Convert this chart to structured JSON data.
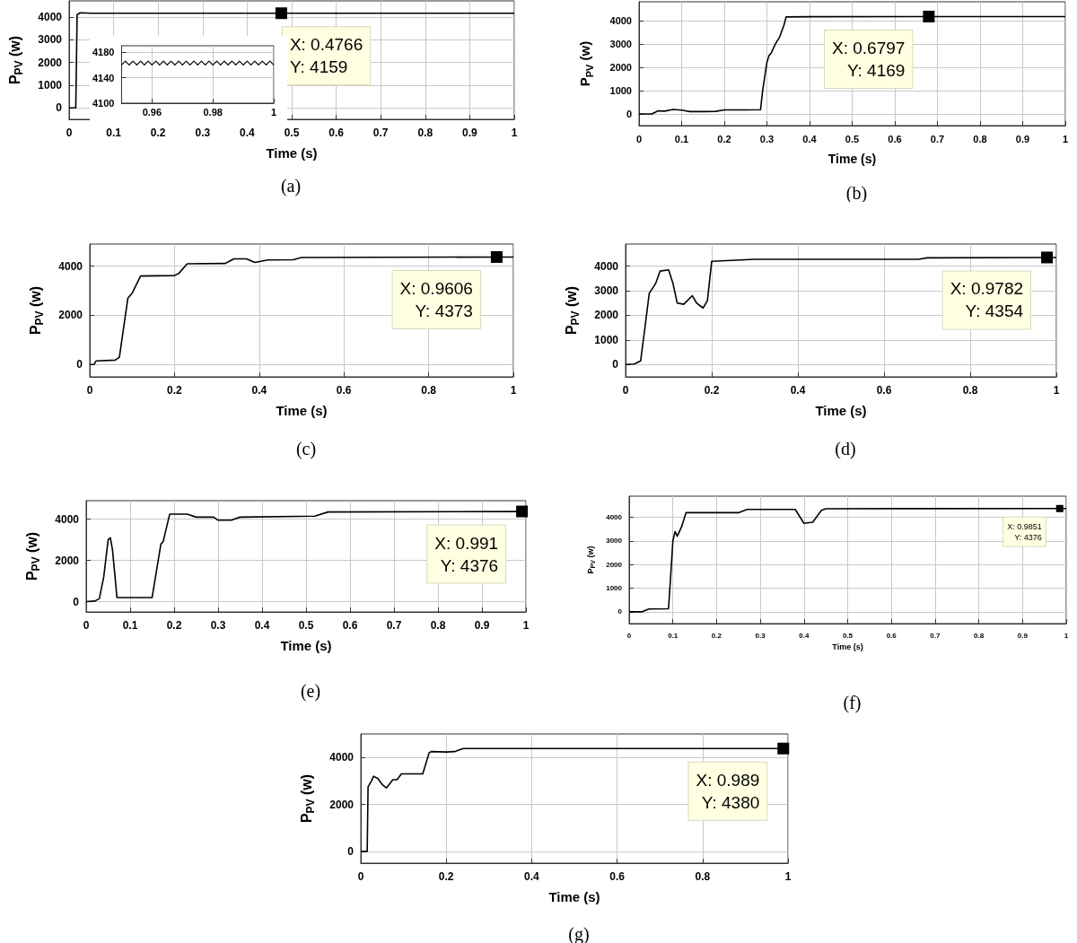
{
  "chart_data": [
    {
      "type": "line",
      "title": "(a)",
      "xlabel": "Time (s)",
      "ylabel": "P$_{PV}$ (w)",
      "xlim": [
        0,
        1
      ],
      "xticks": [
        0,
        0.1,
        0.2,
        0.3,
        0.4,
        0.5,
        0.6,
        0.7,
        0.8,
        0.9,
        1
      ],
      "ylim": [
        -500,
        4700
      ],
      "yticks": [
        0,
        1000,
        2000,
        3000,
        4000
      ],
      "grid": true,
      "marker": "none",
      "line_style": "solid",
      "annotations": [
        {
          "text": "X: 0.4766\nY: 4159",
          "x": 0.4766,
          "y": 4159
        }
      ],
      "series": [
        {
          "color": "#000000",
          "x": [
            0,
            0.015,
            0.018,
            0.025,
            0.05,
            0.1,
            0.4766,
            1
          ],
          "values": [
            0,
            0,
            4100,
            4180,
            4160,
            4160,
            4159,
            4159
          ]
        }
      ]
    },
    {
      "type": "line",
      "xlim": [
        0.95,
        1
      ],
      "xticks": [
        0.96,
        0.98,
        1
      ],
      "ylim": [
        4100,
        4190
      ],
      "yticks": [
        4100,
        4140,
        4180
      ],
      "grid": true,
      "marker": "none",
      "line_style": "solid",
      "series": [
        {
          "color": "#000000",
          "x": [
            0.95,
            0.95125,
            0.9525,
            0.95375,
            0.955,
            0.95625,
            0.9575,
            0.95875,
            0.96,
            0.96125,
            0.9625,
            0.96375,
            0.965,
            0.96625,
            0.9675,
            0.96875,
            0.97,
            0.97125,
            0.9725,
            0.97375,
            0.975,
            0.97625,
            0.9775,
            0.97875,
            0.98,
            0.98125,
            0.9825,
            0.98375,
            0.985,
            0.98625,
            0.9875,
            0.98875,
            0.99,
            0.99125,
            0.9925,
            0.99375,
            0.995,
            0.99625,
            0.9975,
            0.99875,
            1
          ],
          "values": [
            4160,
            4166,
            4160,
            4166,
            4160,
            4166,
            4160,
            4166,
            4160,
            4166,
            4160,
            4166,
            4160,
            4166,
            4160,
            4166,
            4160,
            4166,
            4160,
            4166,
            4160,
            4166,
            4160,
            4166,
            4160,
            4166,
            4160,
            4166,
            4160,
            4166,
            4160,
            4166,
            4160,
            4166,
            4160,
            4166,
            4160,
            4166,
            4160,
            4166,
            4160
          ]
        }
      ]
    },
    {
      "type": "line",
      "title": "(b)",
      "xlabel": "Time (s)",
      "ylabel": "P$_{PV}$ (w)",
      "xlim": [
        0,
        1
      ],
      "xticks": [
        0,
        0.1,
        0.2,
        0.3,
        0.4,
        0.5,
        0.6,
        0.7,
        0.8,
        0.9,
        1
      ],
      "ylim": [
        -500,
        4800
      ],
      "yticks": [
        0,
        1000,
        2000,
        3000,
        4000
      ],
      "grid": true,
      "marker": "none",
      "line_style": "solid",
      "annotations": [
        {
          "text": "X: 0.6797\nY: 4169",
          "x": 0.6797,
          "y": 4169
        }
      ],
      "series": [
        {
          "color": "#000000",
          "x": [
            0,
            0.03,
            0.045,
            0.06,
            0.08,
            0.1,
            0.12,
            0.15,
            0.18,
            0.2,
            0.25,
            0.285,
            0.29,
            0.3,
            0.305,
            0.31,
            0.32,
            0.33,
            0.34,
            0.345,
            0.4,
            0.6797,
            1
          ],
          "values": [
            0,
            0,
            130,
            120,
            190,
            160,
            100,
            100,
            110,
            170,
            170,
            180,
            1000,
            2200,
            2500,
            2600,
            3000,
            3300,
            3800,
            4150,
            4160,
            4169,
            4165
          ]
        }
      ]
    },
    {
      "type": "line",
      "title": "(c)",
      "xlabel": "Time (s)",
      "ylabel": "P$_{PV}$ (w)",
      "xlim": [
        0,
        1
      ],
      "xticks": [
        0,
        0.2,
        0.4,
        0.6,
        0.8,
        1
      ],
      "ylim": [
        -500,
        4900
      ],
      "yticks": [
        0,
        2000,
        4000
      ],
      "grid": true,
      "marker": "none",
      "line_style": "solid",
      "annotations": [
        {
          "text": "X: 0.9606\nY: 4373",
          "x": 0.9606,
          "y": 4373
        }
      ],
      "series": [
        {
          "color": "#000000",
          "x": [
            0,
            0.01,
            0.015,
            0.06,
            0.07,
            0.08,
            0.09,
            0.1,
            0.12,
            0.2,
            0.21,
            0.23,
            0.32,
            0.34,
            0.37,
            0.39,
            0.42,
            0.48,
            0.5,
            0.9606,
            1
          ],
          "values": [
            0,
            0,
            150,
            180,
            300,
            1500,
            2700,
            2900,
            3600,
            3620,
            3700,
            4100,
            4110,
            4300,
            4300,
            4150,
            4250,
            4260,
            4350,
            4373,
            4370
          ]
        }
      ]
    },
    {
      "type": "line",
      "title": "(d)",
      "xlabel": "Time (s)",
      "ylabel": "P$_{PV}$ (w)",
      "xlim": [
        0,
        1
      ],
      "xticks": [
        0,
        0.2,
        0.4,
        0.6,
        0.8,
        1
      ],
      "ylim": [
        -500,
        4900
      ],
      "yticks": [
        0,
        1000,
        2000,
        3000,
        4000
      ],
      "grid": true,
      "marker": "none",
      "line_style": "solid",
      "annotations": [
        {
          "text": "X: 0.9782\nY: 4354",
          "x": 0.9782,
          "y": 4354
        }
      ],
      "series": [
        {
          "color": "#000000",
          "x": [
            0,
            0.02,
            0.035,
            0.045,
            0.055,
            0.07,
            0.08,
            0.1,
            0.11,
            0.12,
            0.135,
            0.155,
            0.165,
            0.18,
            0.19,
            0.2,
            0.3,
            0.68,
            0.7,
            0.9782,
            1
          ],
          "values": [
            0,
            20,
            150,
            1500,
            2900,
            3300,
            3800,
            3850,
            3300,
            2500,
            2450,
            2800,
            2500,
            2300,
            2600,
            4200,
            4280,
            4280,
            4340,
            4354,
            4350
          ]
        }
      ]
    },
    {
      "type": "line",
      "title": "(e)",
      "xlabel": "Time (s)",
      "ylabel": "P$_{PV}$ (w)",
      "xlim": [
        0,
        1
      ],
      "xticks": [
        0,
        0.1,
        0.2,
        0.3,
        0.4,
        0.5,
        0.6,
        0.7,
        0.8,
        0.9,
        1
      ],
      "ylim": [
        -500,
        4900
      ],
      "yticks": [
        0,
        2000,
        4000
      ],
      "grid": true,
      "marker": "none",
      "line_style": "solid",
      "annotations": [
        {
          "text": "X: 0.991\nY: 4376",
          "x": 0.991,
          "y": 4376
        }
      ],
      "series": [
        {
          "color": "#000000",
          "x": [
            0,
            0.02,
            0.03,
            0.04,
            0.05,
            0.055,
            0.06,
            0.07,
            0.15,
            0.17,
            0.175,
            0.19,
            0.23,
            0.25,
            0.29,
            0.3,
            0.33,
            0.35,
            0.52,
            0.55,
            0.991,
            1
          ],
          "values": [
            0,
            30,
            150,
            1200,
            3000,
            3100,
            2500,
            200,
            200,
            2800,
            2900,
            4250,
            4250,
            4100,
            4100,
            3950,
            3950,
            4100,
            4150,
            4350,
            4376,
            4370
          ]
        }
      ]
    },
    {
      "type": "line",
      "title": "(f)",
      "xlabel": "Time (s)",
      "ylabel": "P$_{PV}$ (w)",
      "xlim": [
        0,
        1
      ],
      "xticks": [
        0,
        0.1,
        0.2,
        0.3,
        0.4,
        0.5,
        0.6,
        0.7,
        0.8,
        0.9,
        1
      ],
      "ylim": [
        -500,
        4900
      ],
      "yticks": [
        0,
        1000,
        2000,
        3000,
        4000
      ],
      "grid": true,
      "marker": "none",
      "line_style": "solid",
      "annotations": [
        {
          "text": "X: 0.9851\nY: 4376",
          "x": 0.9851,
          "y": 4376
        }
      ],
      "series": [
        {
          "color": "#000000",
          "x": [
            0,
            0.03,
            0.045,
            0.09,
            0.095,
            0.1,
            0.105,
            0.11,
            0.12,
            0.13,
            0.25,
            0.27,
            0.38,
            0.4,
            0.42,
            0.44,
            0.45,
            0.9851,
            1
          ],
          "values": [
            0,
            0,
            120,
            130,
            1500,
            3000,
            3400,
            3200,
            3600,
            4200,
            4200,
            4340,
            4340,
            3750,
            3800,
            4300,
            4370,
            4376,
            4376
          ]
        }
      ]
    },
    {
      "type": "line",
      "title": "(g)",
      "xlabel": "Time (s)",
      "ylabel": "P$_{PV}$ (w)",
      "xlim": [
        0,
        1
      ],
      "xticks": [
        0,
        0.2,
        0.4,
        0.6,
        0.8,
        1
      ],
      "ylim": [
        -500,
        5000
      ],
      "yticks": [
        0,
        2000,
        4000
      ],
      "grid": true,
      "marker": "none",
      "line_style": "solid",
      "annotations": [
        {
          "text": "X: 0.989\nY: 4380",
          "x": 0.989,
          "y": 4380
        }
      ],
      "series": [
        {
          "color": "#000000",
          "x": [
            0,
            0.015,
            0.017,
            0.025,
            0.03,
            0.04,
            0.05,
            0.06,
            0.075,
            0.085,
            0.095,
            0.145,
            0.16,
            0.165,
            0.2,
            0.22,
            0.24,
            0.989,
            1
          ],
          "values": [
            0,
            0,
            2750,
            3000,
            3200,
            3100,
            2850,
            2700,
            3050,
            3050,
            3300,
            3300,
            4200,
            4250,
            4230,
            4250,
            4380,
            4380,
            4380
          ]
        }
      ]
    }
  ]
}
